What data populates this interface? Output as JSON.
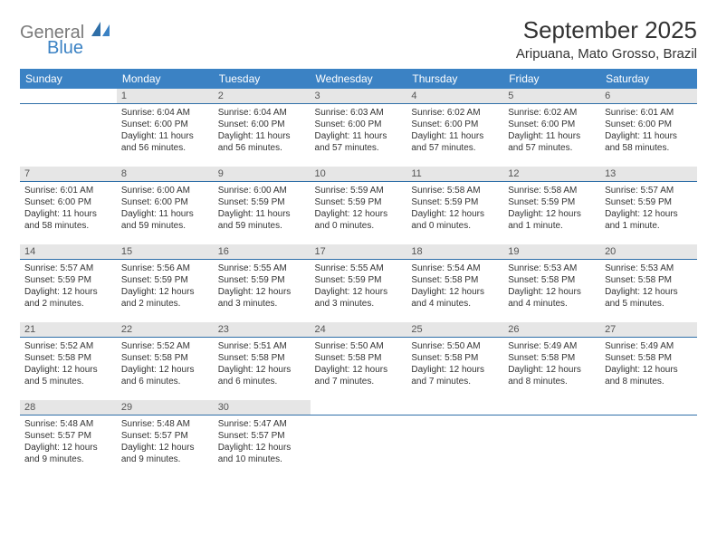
{
  "logo": {
    "general": "General",
    "blue": "Blue"
  },
  "title": "September 2025",
  "location": "Aripuana, Mato Grosso, Brazil",
  "weekdays": [
    "Sunday",
    "Monday",
    "Tuesday",
    "Wednesday",
    "Thursday",
    "Friday",
    "Saturday"
  ],
  "colors": {
    "header_bg": "#3b82c4",
    "daynum_bg": "#e6e6e6",
    "daynum_border": "#2f6fa8",
    "text": "#333333",
    "logo_gray": "#7a7a7a",
    "logo_blue": "#3b82c4"
  },
  "typography": {
    "title_fontsize": 26,
    "location_fontsize": 15,
    "weekday_fontsize": 12,
    "cell_fontsize": 10
  },
  "weeks": [
    [
      {
        "n": "",
        "sunrise": "",
        "sunset": "",
        "daylight": ""
      },
      {
        "n": "1",
        "sunrise": "Sunrise: 6:04 AM",
        "sunset": "Sunset: 6:00 PM",
        "daylight": "Daylight: 11 hours and 56 minutes."
      },
      {
        "n": "2",
        "sunrise": "Sunrise: 6:04 AM",
        "sunset": "Sunset: 6:00 PM",
        "daylight": "Daylight: 11 hours and 56 minutes."
      },
      {
        "n": "3",
        "sunrise": "Sunrise: 6:03 AM",
        "sunset": "Sunset: 6:00 PM",
        "daylight": "Daylight: 11 hours and 57 minutes."
      },
      {
        "n": "4",
        "sunrise": "Sunrise: 6:02 AM",
        "sunset": "Sunset: 6:00 PM",
        "daylight": "Daylight: 11 hours and 57 minutes."
      },
      {
        "n": "5",
        "sunrise": "Sunrise: 6:02 AM",
        "sunset": "Sunset: 6:00 PM",
        "daylight": "Daylight: 11 hours and 57 minutes."
      },
      {
        "n": "6",
        "sunrise": "Sunrise: 6:01 AM",
        "sunset": "Sunset: 6:00 PM",
        "daylight": "Daylight: 11 hours and 58 minutes."
      }
    ],
    [
      {
        "n": "7",
        "sunrise": "Sunrise: 6:01 AM",
        "sunset": "Sunset: 6:00 PM",
        "daylight": "Daylight: 11 hours and 58 minutes."
      },
      {
        "n": "8",
        "sunrise": "Sunrise: 6:00 AM",
        "sunset": "Sunset: 6:00 PM",
        "daylight": "Daylight: 11 hours and 59 minutes."
      },
      {
        "n": "9",
        "sunrise": "Sunrise: 6:00 AM",
        "sunset": "Sunset: 5:59 PM",
        "daylight": "Daylight: 11 hours and 59 minutes."
      },
      {
        "n": "10",
        "sunrise": "Sunrise: 5:59 AM",
        "sunset": "Sunset: 5:59 PM",
        "daylight": "Daylight: 12 hours and 0 minutes."
      },
      {
        "n": "11",
        "sunrise": "Sunrise: 5:58 AM",
        "sunset": "Sunset: 5:59 PM",
        "daylight": "Daylight: 12 hours and 0 minutes."
      },
      {
        "n": "12",
        "sunrise": "Sunrise: 5:58 AM",
        "sunset": "Sunset: 5:59 PM",
        "daylight": "Daylight: 12 hours and 1 minute."
      },
      {
        "n": "13",
        "sunrise": "Sunrise: 5:57 AM",
        "sunset": "Sunset: 5:59 PM",
        "daylight": "Daylight: 12 hours and 1 minute."
      }
    ],
    [
      {
        "n": "14",
        "sunrise": "Sunrise: 5:57 AM",
        "sunset": "Sunset: 5:59 PM",
        "daylight": "Daylight: 12 hours and 2 minutes."
      },
      {
        "n": "15",
        "sunrise": "Sunrise: 5:56 AM",
        "sunset": "Sunset: 5:59 PM",
        "daylight": "Daylight: 12 hours and 2 minutes."
      },
      {
        "n": "16",
        "sunrise": "Sunrise: 5:55 AM",
        "sunset": "Sunset: 5:59 PM",
        "daylight": "Daylight: 12 hours and 3 minutes."
      },
      {
        "n": "17",
        "sunrise": "Sunrise: 5:55 AM",
        "sunset": "Sunset: 5:59 PM",
        "daylight": "Daylight: 12 hours and 3 minutes."
      },
      {
        "n": "18",
        "sunrise": "Sunrise: 5:54 AM",
        "sunset": "Sunset: 5:58 PM",
        "daylight": "Daylight: 12 hours and 4 minutes."
      },
      {
        "n": "19",
        "sunrise": "Sunrise: 5:53 AM",
        "sunset": "Sunset: 5:58 PM",
        "daylight": "Daylight: 12 hours and 4 minutes."
      },
      {
        "n": "20",
        "sunrise": "Sunrise: 5:53 AM",
        "sunset": "Sunset: 5:58 PM",
        "daylight": "Daylight: 12 hours and 5 minutes."
      }
    ],
    [
      {
        "n": "21",
        "sunrise": "Sunrise: 5:52 AM",
        "sunset": "Sunset: 5:58 PM",
        "daylight": "Daylight: 12 hours and 5 minutes."
      },
      {
        "n": "22",
        "sunrise": "Sunrise: 5:52 AM",
        "sunset": "Sunset: 5:58 PM",
        "daylight": "Daylight: 12 hours and 6 minutes."
      },
      {
        "n": "23",
        "sunrise": "Sunrise: 5:51 AM",
        "sunset": "Sunset: 5:58 PM",
        "daylight": "Daylight: 12 hours and 6 minutes."
      },
      {
        "n": "24",
        "sunrise": "Sunrise: 5:50 AM",
        "sunset": "Sunset: 5:58 PM",
        "daylight": "Daylight: 12 hours and 7 minutes."
      },
      {
        "n": "25",
        "sunrise": "Sunrise: 5:50 AM",
        "sunset": "Sunset: 5:58 PM",
        "daylight": "Daylight: 12 hours and 7 minutes."
      },
      {
        "n": "26",
        "sunrise": "Sunrise: 5:49 AM",
        "sunset": "Sunset: 5:58 PM",
        "daylight": "Daylight: 12 hours and 8 minutes."
      },
      {
        "n": "27",
        "sunrise": "Sunrise: 5:49 AM",
        "sunset": "Sunset: 5:58 PM",
        "daylight": "Daylight: 12 hours and 8 minutes."
      }
    ],
    [
      {
        "n": "28",
        "sunrise": "Sunrise: 5:48 AM",
        "sunset": "Sunset: 5:57 PM",
        "daylight": "Daylight: 12 hours and 9 minutes."
      },
      {
        "n": "29",
        "sunrise": "Sunrise: 5:48 AM",
        "sunset": "Sunset: 5:57 PM",
        "daylight": "Daylight: 12 hours and 9 minutes."
      },
      {
        "n": "30",
        "sunrise": "Sunrise: 5:47 AM",
        "sunset": "Sunset: 5:57 PM",
        "daylight": "Daylight: 12 hours and 10 minutes."
      },
      {
        "n": "",
        "sunrise": "",
        "sunset": "",
        "daylight": ""
      },
      {
        "n": "",
        "sunrise": "",
        "sunset": "",
        "daylight": ""
      },
      {
        "n": "",
        "sunrise": "",
        "sunset": "",
        "daylight": ""
      },
      {
        "n": "",
        "sunrise": "",
        "sunset": "",
        "daylight": ""
      }
    ]
  ]
}
